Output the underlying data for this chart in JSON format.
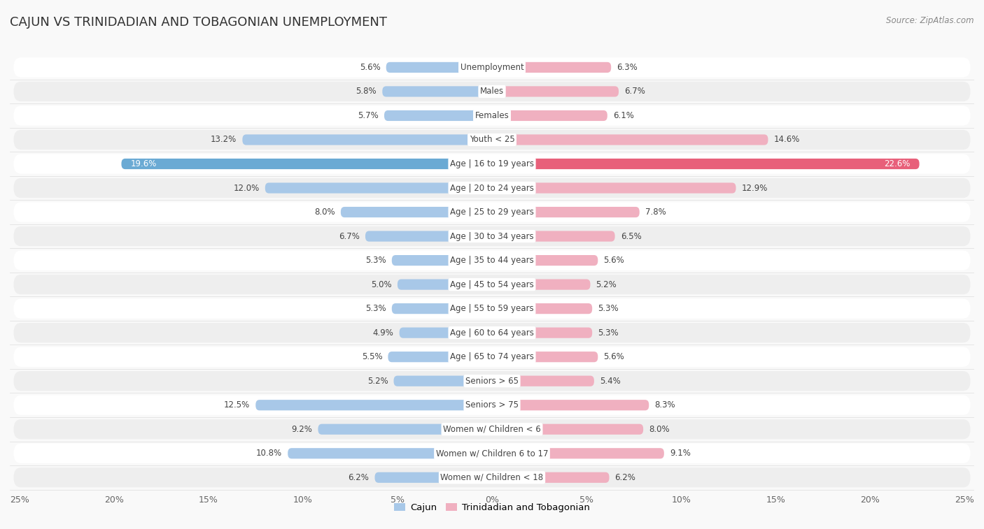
{
  "title": "CAJUN VS TRINIDADIAN AND TOBAGONIAN UNEMPLOYMENT",
  "source": "Source: ZipAtlas.com",
  "categories": [
    "Unemployment",
    "Males",
    "Females",
    "Youth < 25",
    "Age | 16 to 19 years",
    "Age | 20 to 24 years",
    "Age | 25 to 29 years",
    "Age | 30 to 34 years",
    "Age | 35 to 44 years",
    "Age | 45 to 54 years",
    "Age | 55 to 59 years",
    "Age | 60 to 64 years",
    "Age | 65 to 74 years",
    "Seniors > 65",
    "Seniors > 75",
    "Women w/ Children < 6",
    "Women w/ Children 6 to 17",
    "Women w/ Children < 18"
  ],
  "cajun": [
    5.6,
    5.8,
    5.7,
    13.2,
    19.6,
    12.0,
    8.0,
    6.7,
    5.3,
    5.0,
    5.3,
    4.9,
    5.5,
    5.2,
    12.5,
    9.2,
    10.8,
    6.2
  ],
  "trinidadian": [
    6.3,
    6.7,
    6.1,
    14.6,
    22.6,
    12.9,
    7.8,
    6.5,
    5.6,
    5.2,
    5.3,
    5.3,
    5.6,
    5.4,
    8.3,
    8.0,
    9.1,
    6.2
  ],
  "cajun_color": "#a8c8e8",
  "trinidadian_color": "#f0b0c0",
  "cajun_highlight_color": "#6aaad4",
  "trinidadian_highlight_color": "#e8607a",
  "background_color": "#f9f9f9",
  "row_color_light": "#ffffff",
  "row_color_dark": "#eeeeee",
  "x_max": 25.0,
  "legend_cajun": "Cajun",
  "legend_trinidadian": "Trinidadian and Tobagonian"
}
